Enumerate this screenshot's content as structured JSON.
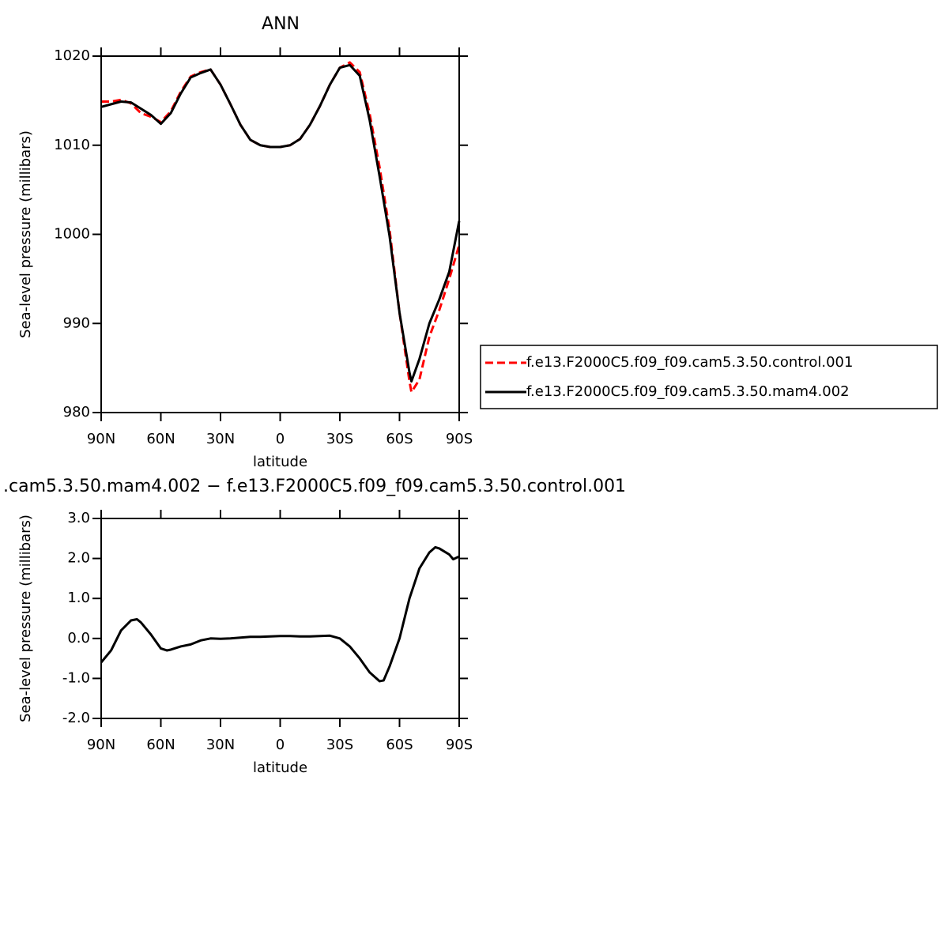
{
  "chart_data": [
    {
      "type": "line",
      "title": "ANN",
      "xlabel": "latitude",
      "ylabel": "Sea-level pressure (millibars)",
      "x": [
        90,
        85,
        80,
        75,
        70,
        65,
        60,
        55,
        50,
        45,
        40,
        35,
        30,
        25,
        20,
        15,
        10,
        5,
        0,
        -5,
        -10,
        -15,
        -20,
        -25,
        -30,
        -35,
        -40,
        -45,
        -50,
        -55,
        -60,
        -65,
        -66,
        -70,
        -75,
        -80,
        -85,
        -90
      ],
      "series": [
        {
          "name": "f.e13.F2000C5.f09_f09.cam5.3.50.control.001",
          "color": "#ff0000",
          "line_style": "dashed",
          "values": [
            1014.9,
            1014.9,
            1015.1,
            1014.7,
            1013.6,
            1013.2,
            1012.6,
            1013.8,
            1016.0,
            1017.7,
            1018.2,
            1018.5,
            1016.8,
            1014.6,
            1012.3,
            1010.6,
            1010.0,
            1009.8,
            1009.8,
            1010.0,
            1010.7,
            1012.3,
            1014.4,
            1016.8,
            1018.7,
            1019.3,
            1018.2,
            1013.5,
            1007.5,
            1000.5,
            991.2,
            983.5,
            982.3,
            983.7,
            988.5,
            991.5,
            995.0,
            998.8
          ]
        },
        {
          "name": "f.e13.F2000C5.f09_f09.cam5.3.50.mam4.002",
          "color": "#000000",
          "line_style": "solid",
          "values": [
            1014.3,
            1014.6,
            1014.9,
            1014.8,
            1014.1,
            1013.4,
            1012.4,
            1013.6,
            1015.8,
            1017.6,
            1018.1,
            1018.5,
            1016.8,
            1014.6,
            1012.3,
            1010.6,
            1010.0,
            1009.8,
            1009.8,
            1010.0,
            1010.7,
            1012.3,
            1014.4,
            1016.8,
            1018.7,
            1019.0,
            1017.8,
            1012.8,
            1006.5,
            999.8,
            991.2,
            984.5,
            983.5,
            986.0,
            990.0,
            992.7,
            995.8,
            1001.5
          ]
        }
      ],
      "xlim": [
        90,
        -90
      ],
      "xticks": [
        {
          "value": 90,
          "label": "90N"
        },
        {
          "value": 60,
          "label": "60N"
        },
        {
          "value": 30,
          "label": "30N"
        },
        0,
        {
          "value": -30,
          "label": "30S"
        },
        {
          "value": -60,
          "label": "60S"
        },
        {
          "value": -90,
          "label": "90S"
        }
      ],
      "ylim": [
        980,
        1020
      ],
      "yticks": [
        980,
        990,
        1000,
        1010,
        1020
      ],
      "grid": false,
      "legend": "outside-right"
    },
    {
      "type": "line",
      "title": ".cam5.3.50.mam4.002 − f.e13.F2000C5.f09_f09.cam5.3.50.control.001",
      "xlabel": "latitude",
      "ylabel": "Sea-level pressure (millibars)",
      "x": [
        90,
        85,
        80,
        75,
        72,
        70,
        65,
        60,
        57,
        55,
        50,
        45,
        40,
        35,
        30,
        25,
        20,
        15,
        10,
        5,
        0,
        -5,
        -10,
        -15,
        -20,
        -25,
        -30,
        -35,
        -40,
        -45,
        -50,
        -52,
        -55,
        -60,
        -65,
        -70,
        -75,
        -78,
        -80,
        -85,
        -87,
        -90
      ],
      "series": [
        {
          "color": "#000000",
          "line_style": "solid",
          "values": [
            -0.6,
            -0.3,
            0.2,
            0.45,
            0.48,
            0.4,
            0.1,
            -0.25,
            -0.3,
            -0.28,
            -0.2,
            -0.15,
            -0.05,
            0.0,
            -0.01,
            0.0,
            0.02,
            0.04,
            0.04,
            0.05,
            0.06,
            0.06,
            0.05,
            0.05,
            0.06,
            0.07,
            0.0,
            -0.2,
            -0.5,
            -0.85,
            -1.07,
            -1.05,
            -0.7,
            0.0,
            1.0,
            1.75,
            2.15,
            2.28,
            2.25,
            2.1,
            1.98,
            2.05
          ]
        }
      ],
      "xlim": [
        90,
        -90
      ],
      "xticks": [
        {
          "value": 90,
          "label": "90N"
        },
        {
          "value": 60,
          "label": "60N"
        },
        {
          "value": 30,
          "label": "30N"
        },
        0,
        {
          "value": -30,
          "label": "30S"
        },
        {
          "value": -60,
          "label": "60S"
        },
        {
          "value": -90,
          "label": "90S"
        }
      ],
      "ylim": [
        -2,
        3
      ],
      "yticks": [
        {
          "value": -2,
          "label": "-2.0"
        },
        {
          "value": -1,
          "label": "-1.0"
        },
        {
          "value": 0,
          "label": "0.0"
        },
        {
          "value": 1,
          "label": "1.0"
        },
        {
          "value": 2,
          "label": "2.0"
        },
        {
          "value": 3,
          "label": "3.0"
        }
      ],
      "grid": false
    }
  ]
}
